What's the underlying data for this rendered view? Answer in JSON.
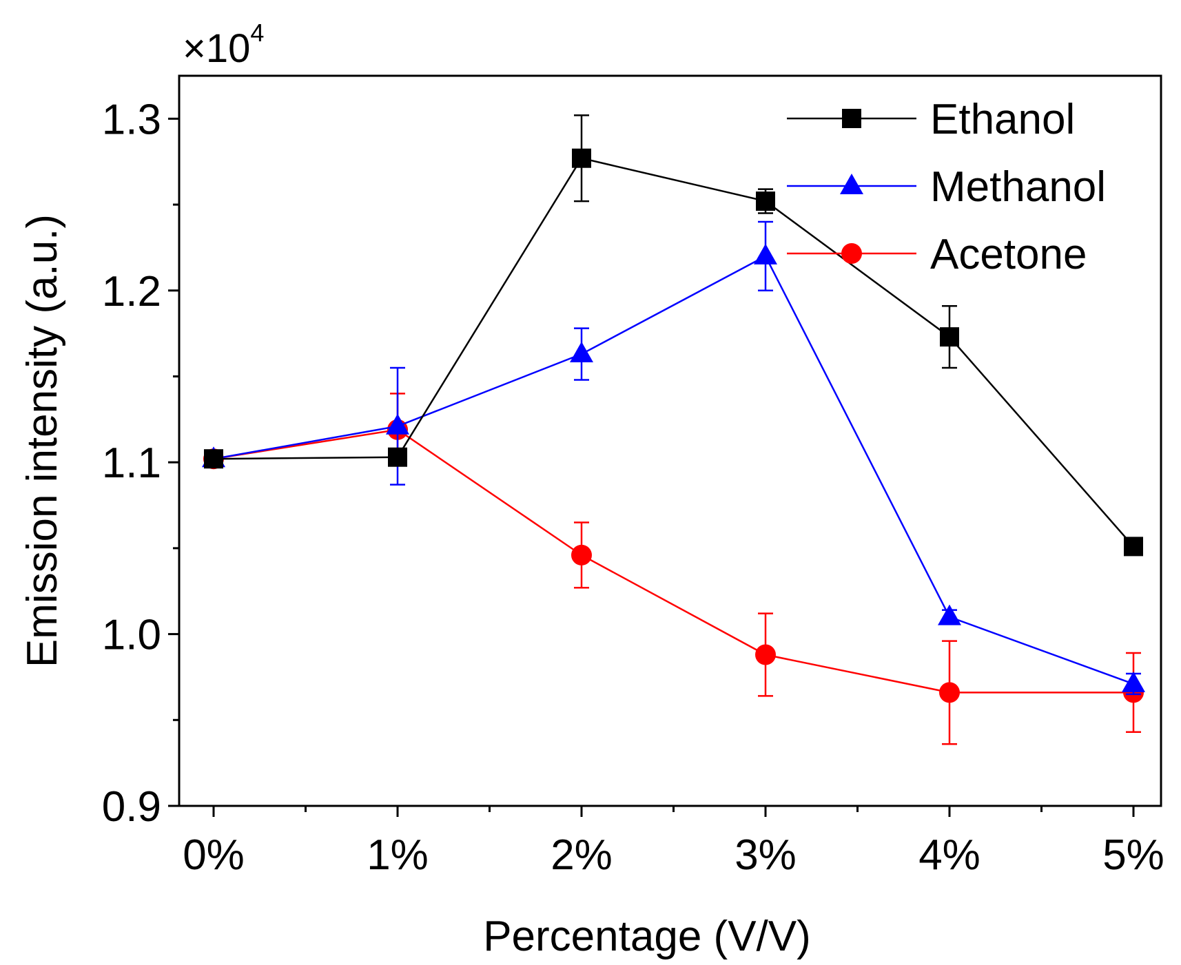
{
  "chart_data": {
    "type": "line",
    "xlabel": "Percentage (V/V)",
    "ylabel": "Emission intensity (a.u.)",
    "y_multiplier": {
      "base": "×10",
      "exponent": "4"
    },
    "categories": [
      "0%",
      "1%",
      "2%",
      "3%",
      "4%",
      "5%"
    ],
    "ylim": [
      0.9,
      1.325
    ],
    "yticks": [
      0.9,
      1.0,
      1.1,
      1.2,
      1.3
    ],
    "ytick_labels": [
      "0.9",
      "1.0",
      "1.1",
      "1.2",
      "1.3"
    ],
    "grid": false,
    "legend_position": "top-right",
    "series": [
      {
        "name": "Ethanol",
        "color": "#000000",
        "marker": "square",
        "values": [
          1.102,
          1.103,
          1.277,
          1.252,
          1.173,
          1.051
        ],
        "errors": [
          0.003,
          0.003,
          0.025,
          0.007,
          0.018,
          0.003
        ]
      },
      {
        "name": "Methanol",
        "color": "#0000ff",
        "marker": "triangle",
        "values": [
          1.102,
          1.121,
          1.163,
          1.22,
          1.01,
          0.971
        ],
        "errors": [
          0.005,
          0.034,
          0.015,
          0.02,
          0.004,
          0.006
        ]
      },
      {
        "name": "Acetone",
        "color": "#ff0000",
        "marker": "circle",
        "values": [
          1.102,
          1.119,
          1.046,
          0.988,
          0.966,
          0.966
        ],
        "errors": [
          0.004,
          0.021,
          0.019,
          0.024,
          0.03,
          0.023
        ]
      }
    ]
  }
}
